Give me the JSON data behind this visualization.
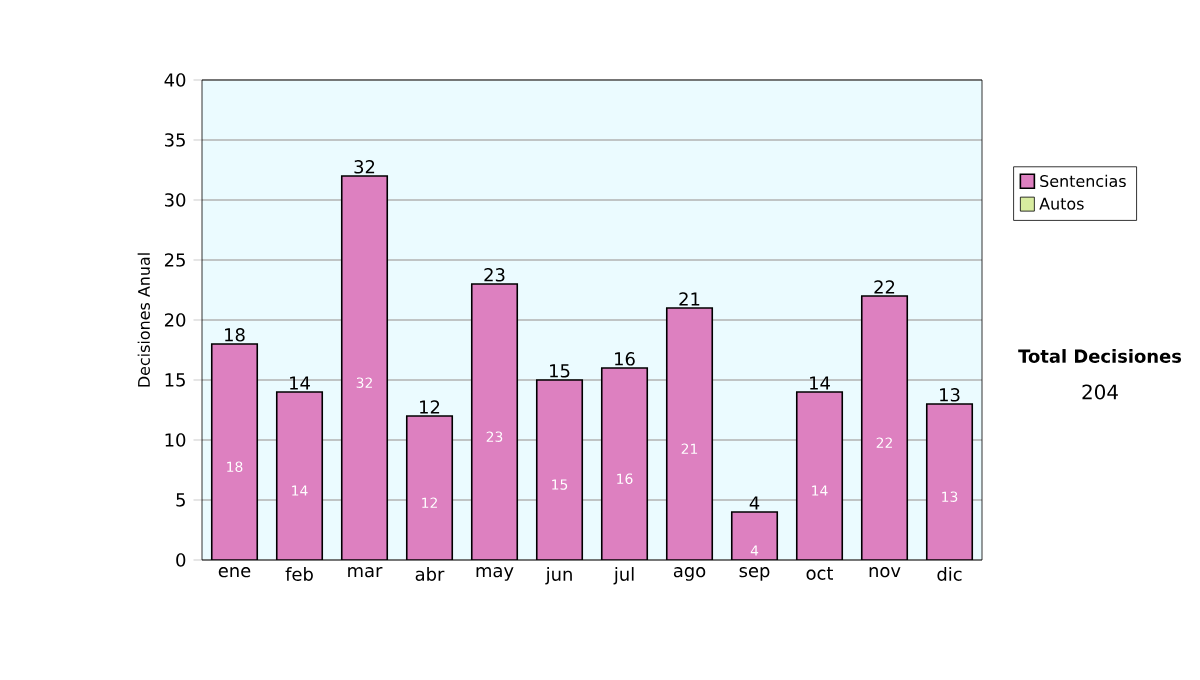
{
  "chart_data": {
    "type": "bar",
    "ylabel": "Decisiones Anual",
    "categories": [
      "ene",
      "feb",
      "mar",
      "abr",
      "may",
      "jun",
      "jul",
      "ago",
      "sep",
      "oct",
      "nov",
      "dic"
    ],
    "series": [
      {
        "name": "Sentencias",
        "color": "#dd80c0",
        "values": [
          18,
          14,
          32,
          12,
          23,
          15,
          16,
          21,
          4,
          14,
          22,
          13
        ]
      },
      {
        "name": "Autos",
        "color": "#d8eca0",
        "values": [
          null,
          null,
          null,
          null,
          null,
          null,
          null,
          null,
          null,
          null,
          null,
          null
        ]
      }
    ],
    "stacked": true,
    "data_labels": true,
    "totals": [
      "18",
      "14",
      "32",
      "12",
      "23",
      "15",
      "16",
      "21",
      "4",
      "14",
      "22",
      "13"
    ],
    "ylim": [
      0,
      40
    ],
    "yticks": [
      0,
      5,
      10,
      15,
      20,
      25,
      30,
      35,
      40
    ],
    "grid": "y",
    "legend": "right",
    "annotations": [
      "Total Decisiones",
      "204"
    ]
  }
}
